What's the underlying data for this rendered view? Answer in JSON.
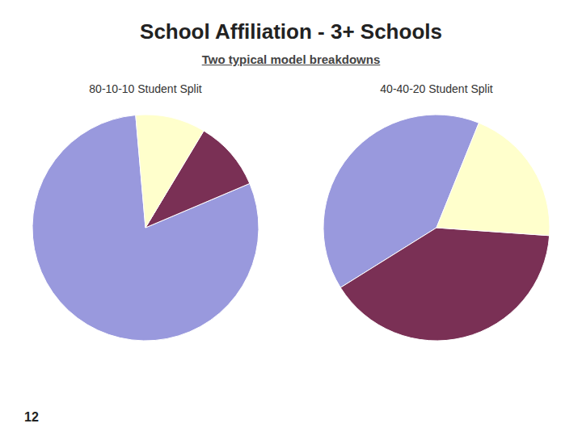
{
  "title": "School Affiliation - 3+ Schools",
  "subtitle": "Two typical model breakdowns",
  "annotations": [
    "12"
  ],
  "chart_data": [
    {
      "type": "pie",
      "title": "80-10-10 Student Split",
      "values": [
        80,
        10,
        10
      ],
      "colors": [
        "#9999dd",
        "#7a3055",
        "#ffffcc"
      ]
    },
    {
      "type": "pie",
      "title": "40-40-20 Student Split",
      "values": [
        40,
        40,
        20
      ],
      "colors": [
        "#9999dd",
        "#7a3055",
        "#ffffcc"
      ]
    }
  ]
}
